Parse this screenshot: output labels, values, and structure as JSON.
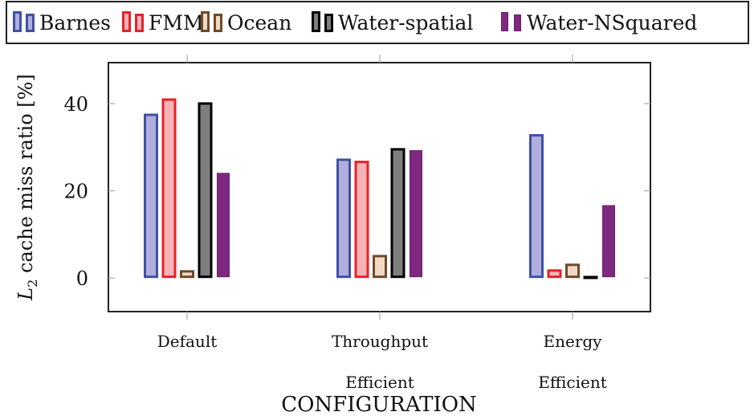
{
  "chart_data": {
    "type": "bar",
    "title": "",
    "xlabel": "CONFIGURATION",
    "ylabel": "L2 cache miss ratio [%]",
    "ylabel_parts": {
      "main": "L",
      "sub": "2",
      "rest": " cache miss ratio [%]"
    },
    "categories": [
      {
        "line1": "Default",
        "line2": ""
      },
      {
        "line1": "Throughput",
        "line2": "Efficient"
      },
      {
        "line1": "Energy",
        "line2": "Efficient"
      }
    ],
    "ylim": [
      -7.7,
      49.4
    ],
    "yticks": [
      0,
      20,
      40
    ],
    "ytick_labels": [
      "0",
      "20",
      "40"
    ],
    "grid": false,
    "legend_position": "top",
    "series": [
      {
        "name": "Barnes",
        "values": [
          37.7,
          27.4,
          33.0
        ],
        "stroke": "#3f51a3",
        "fill": "#b0aedc"
      },
      {
        "name": "FMM",
        "values": [
          41.2,
          26.9,
          2.0
        ],
        "stroke": "#e8202a",
        "fill": "#f4b3b6"
      },
      {
        "name": "Ocean",
        "values": [
          1.8,
          5.3,
          3.3
        ],
        "stroke": "#6e4a2a",
        "fill": "#f2d9c4"
      },
      {
        "name": "Water-spatial",
        "values": [
          40.3,
          29.8,
          0.5
        ],
        "stroke": "#000000",
        "fill": "#7f7f7f"
      },
      {
        "name": "Water-NSquared",
        "values": [
          24.3,
          29.5,
          16.9
        ],
        "stroke": "#6a1f6e",
        "fill": "#7f287f"
      }
    ]
  }
}
